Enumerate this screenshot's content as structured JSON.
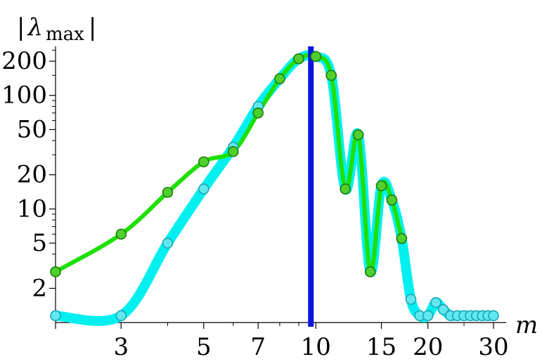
{
  "chart_data": {
    "type": "line",
    "title": "",
    "xlabel": "m",
    "ylabel": "|λmax|",
    "ylabel_parts": {
      "bar_left": "|",
      "symbol": "λ",
      "subscript": "max",
      "bar_right": "|"
    },
    "x_scale": "log",
    "y_scale": "log",
    "xlim": [
      2,
      30
    ],
    "ylim": [
      1,
      270
    ],
    "grid": false,
    "legend": "none",
    "x_ticks": [
      3,
      5,
      7,
      10,
      15,
      20,
      30
    ],
    "x_tick_labels": [
      "3",
      "5",
      "7",
      "10",
      "15",
      "20",
      "30"
    ],
    "y_ticks": [
      2,
      5,
      10,
      20,
      50,
      100,
      200
    ],
    "y_tick_labels": [
      "2",
      "5",
      "10",
      "20",
      "50",
      "100",
      "200"
    ],
    "vertical_line": {
      "x": 9.7,
      "color": "#0a14e0"
    },
    "series": [
      {
        "color": "#00f0f0",
        "marker_fill": "#5fe8ee",
        "x": [
          2,
          3,
          4,
          5,
          6,
          7,
          8,
          9,
          10,
          11,
          12,
          13,
          14,
          15,
          16,
          17,
          18,
          19,
          20,
          21,
          22,
          23,
          24,
          25,
          26,
          27,
          28,
          29,
          30
        ],
        "y": [
          1.15,
          1.15,
          5,
          15,
          35,
          80,
          140,
          210,
          220,
          150,
          15,
          45,
          2.8,
          16,
          12,
          5.5,
          1.6,
          1.15,
          1.15,
          1.5,
          1.3,
          1.15,
          1.15,
          1.15,
          1.15,
          1.15,
          1.15,
          1.15,
          1.15
        ]
      },
      {
        "color": "#1ee000",
        "marker_fill": "#4fd02a",
        "x": [
          2,
          3,
          4,
          5,
          6,
          7,
          8,
          9,
          10,
          11,
          12,
          13,
          14,
          15,
          16,
          17
        ],
        "y": [
          2.8,
          6,
          14,
          26,
          32,
          70,
          140,
          210,
          220,
          150,
          15,
          45,
          2.8,
          16,
          12,
          5.5
        ]
      }
    ]
  }
}
